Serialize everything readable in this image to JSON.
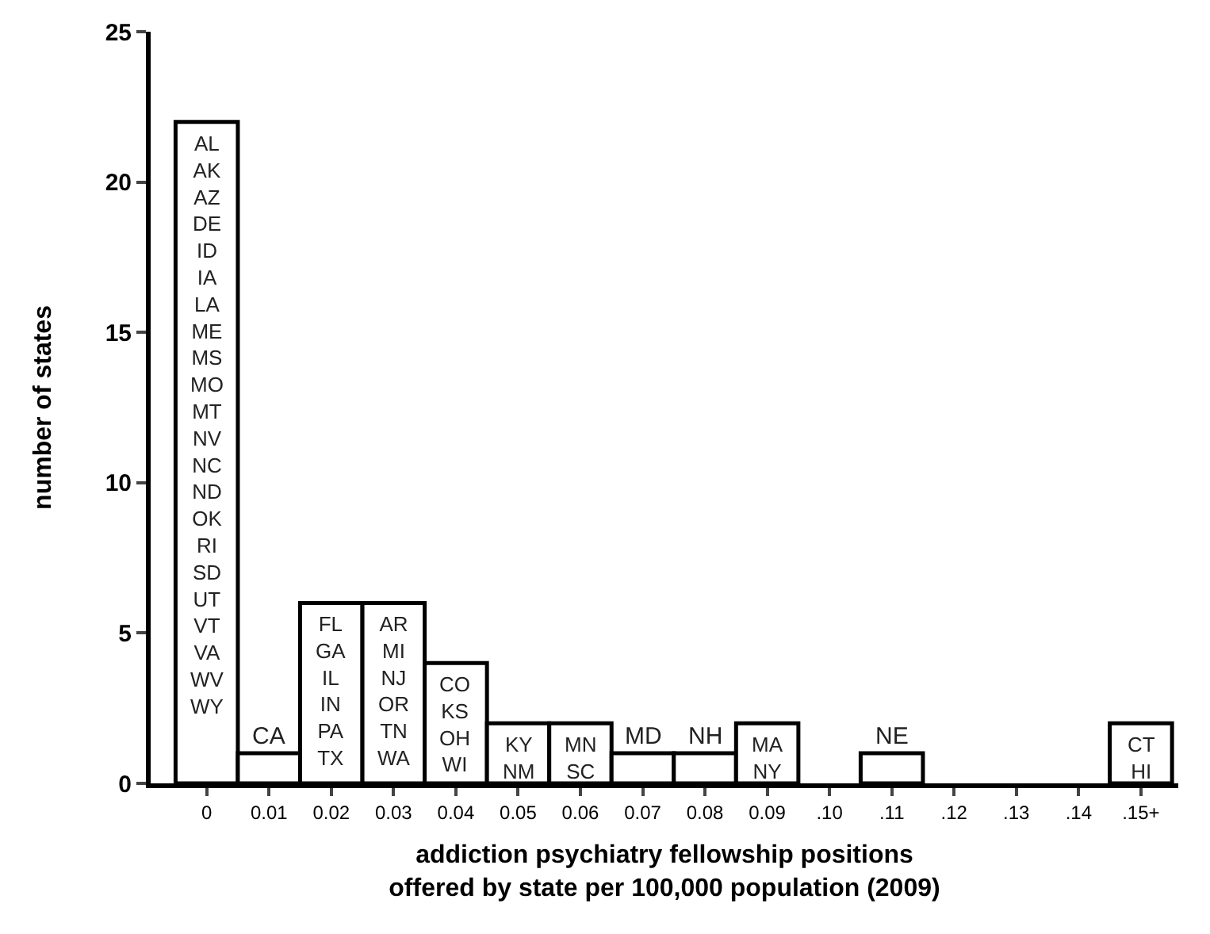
{
  "chart_data": {
    "type": "bar",
    "xlabel": "addiction psychiatry fellowship positions\noffered by state per 100,000 population (2009)",
    "ylabel": "number of states",
    "categories": [
      "0",
      "0.01",
      "0.02",
      "0.03",
      "0.04",
      "0.05",
      "0.06",
      "0.07",
      "0.08",
      "0.09",
      ".10",
      ".11",
      ".12",
      ".13",
      ".14",
      ".15+"
    ],
    "values": [
      22,
      1,
      6,
      6,
      4,
      2,
      2,
      1,
      1,
      2,
      0,
      1,
      0,
      0,
      0,
      2
    ],
    "value_labels": [
      "AL\nAK\nAZ\nDE\nID\nIA\nLA\nME\nMS\nMO\nMT\nNV\nNC\nND\nOK\nRI\nSD\nUT\nVT\nVA\nWV\nWY",
      "CA",
      "FL\nGA\nIL\nIN\nPA\nTX",
      "AR\nMI\nNJ\nOR\nTN\nWA",
      "CO\nKS\nOH\nWI",
      "KY\nNM",
      "MN\nSC",
      "MD",
      "NH",
      "MA\nNY",
      null,
      "NE",
      null,
      null,
      null,
      "CT\nHI"
    ],
    "color": "#ffffff",
    "ylim": [
      0,
      25
    ],
    "yticks": [
      0,
      5,
      10,
      15,
      20,
      25
    ]
  }
}
